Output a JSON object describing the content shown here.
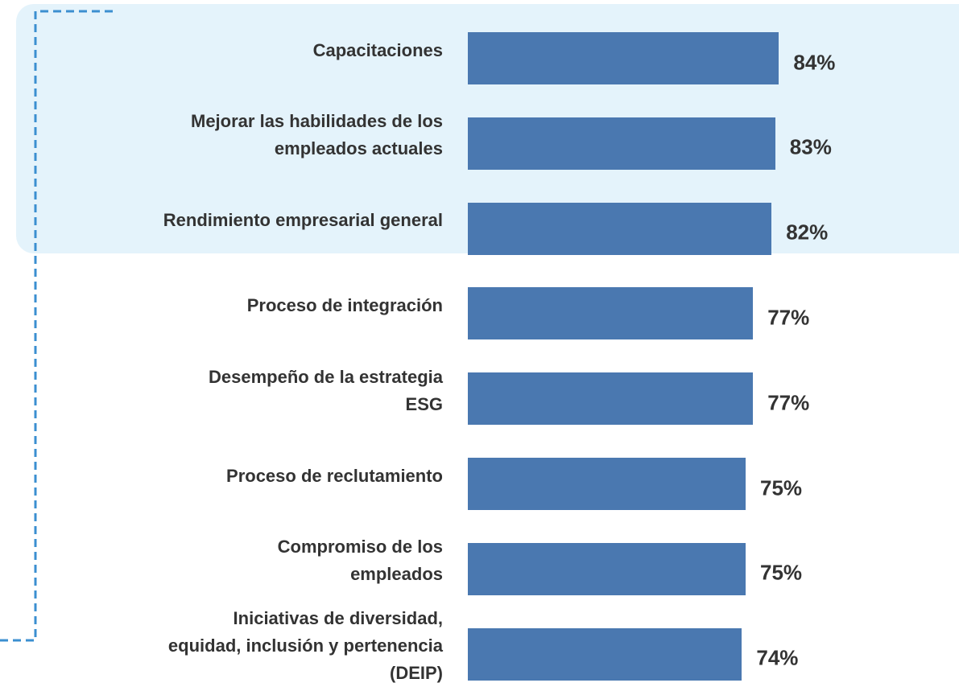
{
  "chart_data": {
    "type": "bar",
    "orientation": "horizontal",
    "categories": [
      "Capacitaciones",
      "Mejorar las habilidades de los\nempleados actuales",
      "Rendimiento empresarial general",
      "Proceso de integración",
      "Desempeño de la estrategia\nESG",
      "Proceso de reclutamiento",
      "Compromiso de los\nempleados",
      "Iniciativas de diversidad,\nequidad, inclusión y pertenencia\n(DEIP)"
    ],
    "values": [
      84,
      83,
      82,
      77,
      77,
      75,
      75,
      74
    ],
    "value_labels": [
      "84%",
      "83%",
      "82%",
      "77%",
      "77%",
      "75%",
      "75%",
      "74%"
    ],
    "color": "#4a78b0"
  }
}
